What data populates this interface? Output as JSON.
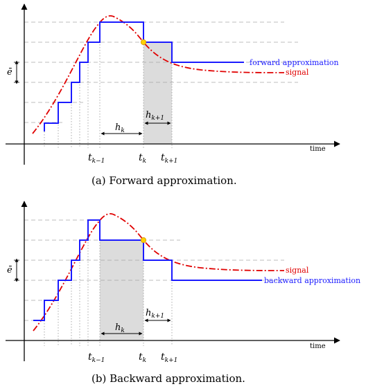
{
  "colors": {
    "approx": "#1a1aff",
    "signal": "#e00000",
    "shade": "#dcdcdc",
    "marker_fill": "#ffd200",
    "marker_stroke": "#d9a000",
    "grid": "#a0a0a0"
  },
  "panel_a": {
    "caption": "(a)  Forward approximation.",
    "approx_label": "forward approximation",
    "signal_label": "signal",
    "time_label": "time",
    "e_label": "ē",
    "h_k_label": "h",
    "h_k_sub": "k",
    "h_k1_label": "h",
    "h_k1_sub": "k+1",
    "t_km1_label": "t",
    "t_km1_sub": "k−1",
    "t_k_label": "t",
    "t_k_sub": "k",
    "t_kp1_label": "t",
    "t_kp1_sub": "k+1"
  },
  "panel_b": {
    "caption": "(b)  Backward approximation.",
    "approx_label": "backward approximation",
    "signal_label": "signal",
    "time_label": "time",
    "e_label": "ē",
    "h_k_label": "h",
    "h_k_sub": "k",
    "h_k1_label": "h",
    "h_k1_sub": "k+1",
    "t_km1_label": "t",
    "t_km1_sub": "k−1",
    "t_k_label": "t",
    "t_k_sub": "k",
    "t_kp1_label": "t",
    "t_kp1_sub": "k+1"
  }
}
